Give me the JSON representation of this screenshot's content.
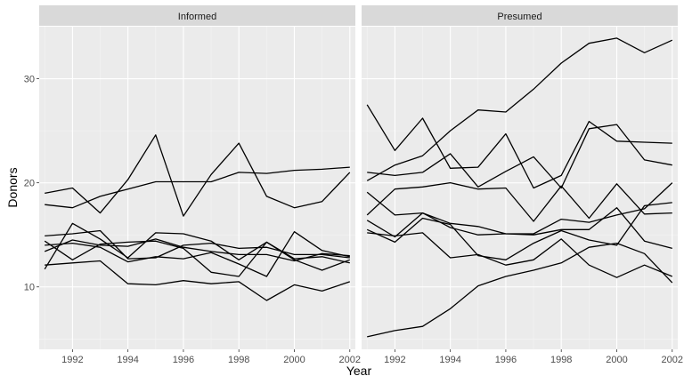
{
  "chart_data": {
    "type": "line",
    "xlabel": "Year",
    "ylabel": "Donors",
    "xlim": [
      1990.8,
      2002.2
    ],
    "ylim": [
      4.0,
      35.0
    ],
    "x_ticks": [
      1992,
      1994,
      1996,
      1998,
      2000,
      2002
    ],
    "y_ticks": [
      10,
      20,
      30
    ],
    "grid": true,
    "legend": "none",
    "x": [
      1991,
      1992,
      1993,
      1994,
      1995,
      1996,
      1997,
      1998,
      1999,
      2000,
      2001,
      2002
    ],
    "facets": [
      {
        "label": "Informed",
        "series": [
          {
            "values": [
              19.0,
              19.5,
              17.1,
              20.3,
              24.6,
              16.8,
              20.8,
              23.8,
              18.7,
              17.6,
              18.2,
              21.0
            ]
          },
          {
            "values": [
              17.9,
              17.6,
              18.7,
              19.4,
              20.1,
              20.1,
              20.1,
              21.0,
              20.9,
              21.2,
              21.3,
              21.5
            ]
          },
          {
            "values": [
              11.7,
              16.1,
              14.6,
              12.8,
              15.2,
              15.1,
              14.4,
              12.6,
              14.3,
              12.7,
              12.9,
              12.3
            ]
          },
          {
            "values": [
              14.9,
              15.1,
              15.4,
              12.7,
              12.8,
              14.0,
              14.2,
              13.7,
              13.8,
              13.1,
              13.1,
              12.8
            ]
          },
          {
            "values": [
              13.4,
              14.5,
              14.0,
              13.9,
              14.6,
              13.8,
              13.4,
              13.1,
              13.1,
              12.5,
              13.2,
              13.0
            ]
          },
          {
            "values": [
              14.4,
              12.6,
              14.1,
              14.3,
              14.4,
              13.7,
              11.4,
              11.0,
              14.3,
              12.6,
              11.6,
              12.6
            ]
          },
          {
            "values": [
              12.1,
              12.3,
              12.5,
              10.3,
              10.2,
              10.6,
              10.3,
              10.5,
              8.7,
              10.2,
              9.6,
              10.5
            ]
          },
          {
            "values": [
              14.0,
              14.2,
              13.8,
              12.4,
              12.9,
              12.7,
              13.3,
              12.2,
              11.0,
              15.3,
              13.5,
              12.9
            ]
          }
        ]
      },
      {
        "label": "Presumed",
        "series": [
          {
            "values": [
              20.2,
              21.7,
              22.6,
              25.0,
              27.0,
              26.8,
              29.0,
              31.5,
              33.4,
              33.9,
              32.5,
              33.7
            ]
          },
          {
            "values": [
              27.5,
              23.1,
              26.2,
              21.4,
              21.5,
              24.7,
              19.5,
              20.7,
              25.9,
              24.0,
              23.9,
              23.8
            ]
          },
          {
            "values": [
              21.0,
              20.7,
              21.0,
              22.8,
              19.6,
              21.1,
              22.5,
              19.5,
              25.2,
              25.6,
              22.2,
              21.7
            ]
          },
          {
            "values": [
              19.1,
              16.9,
              17.1,
              15.7,
              15.0,
              15.1,
              15.1,
              16.5,
              16.2,
              16.9,
              17.5,
              20.0
            ]
          },
          {
            "values": [
              16.9,
              19.4,
              19.6,
              20.0,
              19.4,
              19.5,
              16.3,
              19.7,
              16.6,
              19.9,
              17.0,
              17.1
            ]
          },
          {
            "values": [
              16.4,
              14.8,
              17.1,
              16.1,
              15.8,
              15.1,
              15.0,
              15.5,
              15.5,
              17.6,
              14.4,
              13.7
            ]
          },
          {
            "values": [
              15.5,
              14.3,
              16.6,
              16.0,
              13.0,
              12.6,
              14.2,
              15.4,
              14.5,
              14.0,
              17.8,
              18.1
            ]
          },
          {
            "values": [
              15.2,
              14.9,
              15.2,
              12.8,
              13.1,
              12.1,
              12.6,
              14.6,
              12.1,
              10.9,
              12.1,
              11.0
            ]
          },
          {
            "values": [
              5.2,
              5.8,
              6.2,
              7.9,
              10.1,
              11.0,
              11.6,
              12.3,
              13.8,
              14.2,
              13.2,
              10.4
            ]
          }
        ]
      }
    ]
  }
}
